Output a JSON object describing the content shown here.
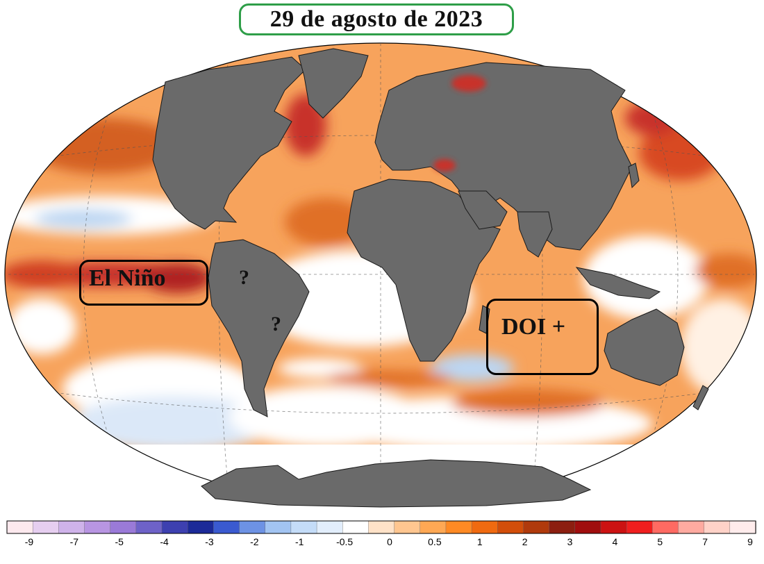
{
  "title": "29 de agosto de 2023",
  "annotations": {
    "el_nino": "El Niño",
    "doi": "DOI +",
    "question_1": "?",
    "question_2": "?"
  },
  "colorbar": {
    "tick_labels": [
      "-9",
      "-7",
      "-5",
      "-4",
      "-3",
      "-2",
      "-1",
      "-0.5",
      "0",
      "0.5",
      "1",
      "2",
      "3",
      "4",
      "5",
      "7",
      "9"
    ],
    "colors": [
      "#fde9ee",
      "#e6cef0",
      "#cfb3ea",
      "#b895e2",
      "#9a7ad8",
      "#6e62c8",
      "#3d40b0",
      "#1c2a98",
      "#3a5ad0",
      "#6d92e4",
      "#a2c4f2",
      "#c4dcf8",
      "#e2eefc",
      "#ffffff",
      "#ffe2c8",
      "#ffc690",
      "#ffa854",
      "#ff8a24",
      "#f06a10",
      "#d24e0a",
      "#b03a0c",
      "#8c1e10",
      "#a00e0e",
      "#cc1212",
      "#f01e1e",
      "#ff6a62",
      "#ffaaa0",
      "#ffd2c8",
      "#ffecec"
    ]
  },
  "map": {
    "land_color": "#6a6a6a",
    "ocean_neutral": "#ffffff",
    "warm_mild": "#ffc080",
    "warm_moderate": "#f08a30",
    "warm_strong": "#c8302a",
    "cool_mild": "#bcd6f2"
  }
}
